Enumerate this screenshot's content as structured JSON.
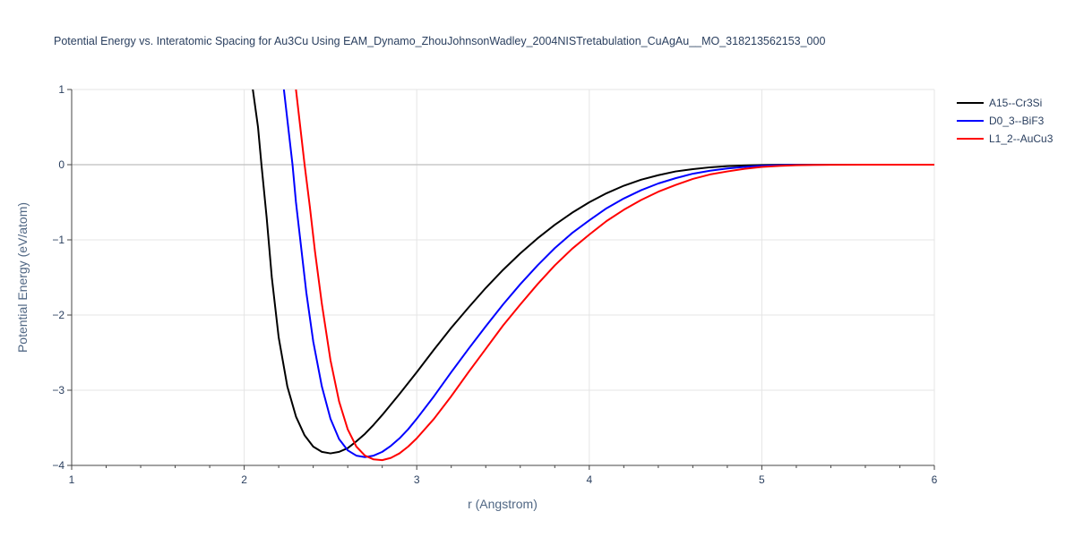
{
  "chart_data": {
    "type": "line",
    "title": "Potential Energy vs. Interatomic Spacing for Au3Cu Using EAM_Dynamo_ZhouJohnsonWadley_2004NISTretabulation_CuAgAu__MO_318213562153_000",
    "xlabel": "r (Angstrom)",
    "ylabel": "Potential Energy (eV/atom)",
    "xlim": [
      1,
      6
    ],
    "ylim": [
      -4,
      1
    ],
    "xticks": [
      1,
      2,
      3,
      4,
      5,
      6
    ],
    "yticks": [
      1,
      0,
      -1,
      -2,
      -3,
      -4
    ],
    "xtick_labels": [
      "1",
      "2",
      "3",
      "4",
      "5",
      "6"
    ],
    "ytick_labels": [
      "1",
      "0",
      "−1",
      "−2",
      "−3",
      "−4"
    ],
    "grid": true,
    "legend_position": "top-right",
    "series": [
      {
        "name": "A15--Cr3Si",
        "color": "#000000",
        "x": [
          2.05,
          2.08,
          2.1,
          2.13,
          2.16,
          2.2,
          2.25,
          2.3,
          2.35,
          2.4,
          2.45,
          2.5,
          2.55,
          2.6,
          2.65,
          2.7,
          2.75,
          2.8,
          2.9,
          3.0,
          3.1,
          3.2,
          3.3,
          3.4,
          3.5,
          3.6,
          3.7,
          3.8,
          3.9,
          4.0,
          4.1,
          4.2,
          4.3,
          4.4,
          4.5,
          4.6,
          4.7,
          4.8,
          4.9,
          5.0,
          5.1,
          5.2,
          5.3,
          5.4,
          5.6,
          5.8,
          6.0
        ],
        "y": [
          1.0,
          0.5,
          0.0,
          -0.7,
          -1.5,
          -2.3,
          -2.95,
          -3.35,
          -3.6,
          -3.75,
          -3.82,
          -3.84,
          -3.82,
          -3.77,
          -3.68,
          -3.58,
          -3.46,
          -3.33,
          -3.05,
          -2.76,
          -2.46,
          -2.17,
          -1.9,
          -1.64,
          -1.4,
          -1.18,
          -0.98,
          -0.8,
          -0.64,
          -0.5,
          -0.38,
          -0.28,
          -0.2,
          -0.14,
          -0.09,
          -0.06,
          -0.035,
          -0.02,
          -0.01,
          -0.005,
          -0.002,
          -0.001,
          0.0,
          0.0,
          0.0,
          0.0,
          0.0
        ]
      },
      {
        "name": "D0_3--BiF3",
        "color": "#0000ff",
        "x": [
          2.23,
          2.25,
          2.28,
          2.3,
          2.33,
          2.36,
          2.4,
          2.45,
          2.5,
          2.55,
          2.6,
          2.65,
          2.7,
          2.75,
          2.8,
          2.85,
          2.9,
          2.95,
          3.0,
          3.1,
          3.2,
          3.3,
          3.4,
          3.5,
          3.6,
          3.7,
          3.8,
          3.9,
          4.0,
          4.1,
          4.2,
          4.3,
          4.4,
          4.5,
          4.6,
          4.7,
          4.8,
          4.9,
          5.0,
          5.1,
          5.2,
          5.3,
          5.4,
          5.6,
          5.8,
          6.0
        ],
        "y": [
          1.0,
          0.6,
          0.0,
          -0.5,
          -1.1,
          -1.7,
          -2.35,
          -2.95,
          -3.38,
          -3.65,
          -3.8,
          -3.87,
          -3.89,
          -3.87,
          -3.82,
          -3.74,
          -3.64,
          -3.52,
          -3.38,
          -3.08,
          -2.76,
          -2.45,
          -2.15,
          -1.86,
          -1.59,
          -1.34,
          -1.11,
          -0.91,
          -0.74,
          -0.58,
          -0.45,
          -0.34,
          -0.25,
          -0.18,
          -0.12,
          -0.08,
          -0.05,
          -0.03,
          -0.015,
          -0.007,
          -0.003,
          -0.001,
          0.0,
          0.0,
          0.0,
          0.0
        ]
      },
      {
        "name": "L1_2--AuCu3",
        "color": "#ff0000",
        "x": [
          2.3,
          2.32,
          2.35,
          2.38,
          2.41,
          2.45,
          2.5,
          2.55,
          2.6,
          2.65,
          2.7,
          2.75,
          2.8,
          2.85,
          2.9,
          2.95,
          3.0,
          3.1,
          3.2,
          3.3,
          3.4,
          3.5,
          3.6,
          3.7,
          3.8,
          3.9,
          4.0,
          4.1,
          4.2,
          4.3,
          4.4,
          4.5,
          4.6,
          4.7,
          4.8,
          4.9,
          5.0,
          5.1,
          5.2,
          5.3,
          5.4,
          5.6,
          5.8,
          6.0
        ],
        "y": [
          1.0,
          0.6,
          0.0,
          -0.55,
          -1.15,
          -1.85,
          -2.6,
          -3.15,
          -3.52,
          -3.75,
          -3.87,
          -3.92,
          -3.93,
          -3.9,
          -3.84,
          -3.75,
          -3.64,
          -3.38,
          -3.08,
          -2.76,
          -2.45,
          -2.14,
          -1.86,
          -1.59,
          -1.34,
          -1.12,
          -0.93,
          -0.75,
          -0.6,
          -0.47,
          -0.36,
          -0.27,
          -0.19,
          -0.13,
          -0.09,
          -0.055,
          -0.03,
          -0.016,
          -0.008,
          -0.003,
          -0.001,
          0.0,
          0.0,
          0.0
        ]
      }
    ]
  }
}
